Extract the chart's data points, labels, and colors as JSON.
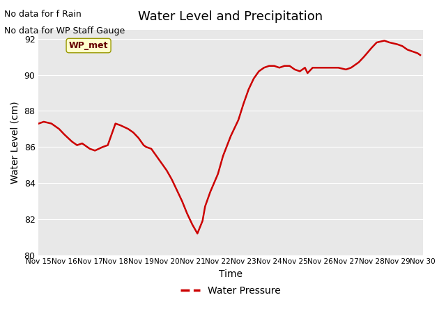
{
  "title": "Water Level and Precipitation",
  "xlabel": "Time",
  "ylabel": "Water Level (cm)",
  "ylim": [
    80,
    92.5
  ],
  "xlim": [
    0,
    15
  ],
  "background_color": "#e8e8e8",
  "line_color": "#cc0000",
  "line_width": 1.8,
  "text_no_data_rain": "No data for f Rain",
  "text_no_data_wp": "No data for WP Staff Gauge",
  "legend_label": "Water Pressure",
  "legend_box_color": "#ffffcc",
  "legend_box_text": "WP_met",
  "legend_box_text_color": "#660000",
  "xtick_labels": [
    "Nov 15",
    "Nov 16",
    "Nov 17",
    "Nov 18",
    "Nov 19",
    "Nov 20",
    "Nov 21",
    "Nov 22",
    "Nov 23",
    "Nov 24",
    "Nov 25",
    "Nov 26",
    "Nov 27",
    "Nov 28",
    "Nov 29",
    "Nov 30"
  ],
  "ytick_values": [
    80,
    82,
    84,
    86,
    88,
    90,
    92
  ],
  "x": [
    0,
    0.2,
    0.5,
    0.8,
    1.0,
    1.3,
    1.5,
    1.7,
    2.0,
    2.2,
    2.5,
    2.7,
    3.0,
    3.2,
    3.5,
    3.7,
    3.9,
    4.0,
    4.1,
    4.2,
    4.4,
    4.6,
    4.8,
    5.0,
    5.2,
    5.4,
    5.6,
    5.8,
    6.0,
    6.2,
    6.4,
    6.5,
    6.7,
    7.0,
    7.2,
    7.5,
    7.8,
    8.0,
    8.2,
    8.4,
    8.6,
    8.8,
    9.0,
    9.2,
    9.4,
    9.6,
    9.8,
    10.0,
    10.2,
    10.4,
    10.5,
    10.7,
    11.0,
    11.2,
    11.5,
    11.7,
    12.0,
    12.2,
    12.5,
    12.7,
    13.0,
    13.2,
    13.5,
    13.7,
    14.0,
    14.2,
    14.4,
    14.6,
    14.8,
    14.9
  ],
  "y": [
    87.3,
    87.4,
    87.3,
    87.0,
    86.7,
    86.3,
    86.1,
    86.2,
    85.9,
    85.8,
    86.0,
    86.1,
    87.3,
    87.2,
    87.0,
    86.8,
    86.5,
    86.3,
    86.1,
    86.0,
    85.9,
    85.5,
    85.1,
    84.7,
    84.2,
    83.6,
    83.0,
    82.3,
    81.7,
    81.2,
    81.9,
    82.7,
    83.5,
    84.5,
    85.5,
    86.6,
    87.5,
    88.4,
    89.2,
    89.8,
    90.2,
    90.4,
    90.5,
    90.5,
    90.4,
    90.5,
    90.5,
    90.3,
    90.2,
    90.4,
    90.1,
    90.4,
    90.4,
    90.4,
    90.4,
    90.4,
    90.3,
    90.4,
    90.7,
    91.0,
    91.5,
    91.8,
    91.9,
    91.8,
    91.7,
    91.6,
    91.4,
    91.3,
    91.2,
    91.1
  ]
}
